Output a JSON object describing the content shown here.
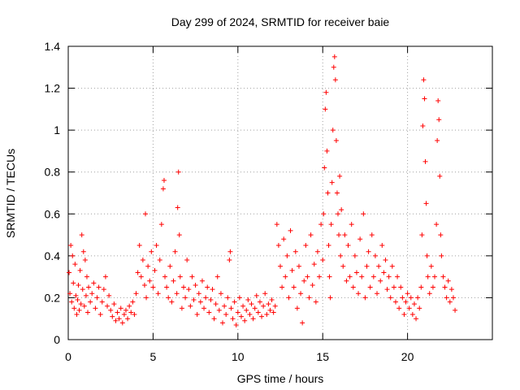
{
  "chart_data": {
    "type": "scatter",
    "title": "Day 299 of 2024, SRMTID for receiver baie",
    "xlabel": "GPS time / hours",
    "ylabel": "SRMTID / TECUs",
    "xlim": [
      0,
      25
    ],
    "ylim": [
      0,
      1.4
    ],
    "xticks": [
      0,
      5,
      10,
      15,
      20
    ],
    "xtick_labels": [
      "0",
      "5",
      "10",
      "15",
      "20"
    ],
    "yticks": [
      0,
      0.2,
      0.4,
      0.6,
      0.8,
      1.0,
      1.2,
      1.4
    ],
    "ytick_labels": [
      "0",
      "0.2",
      "0.4",
      "0.6",
      "0.8",
      "1",
      "1.2",
      "1.4"
    ],
    "grid": true,
    "marker": "+",
    "color": "#ff0000",
    "series": [
      {
        "name": "SRMTID",
        "points": [
          [
            0.05,
            0.32
          ],
          [
            0.1,
            0.22
          ],
          [
            0.15,
            0.45
          ],
          [
            0.2,
            0.18
          ],
          [
            0.25,
            0.4
          ],
          [
            0.3,
            0.27
          ],
          [
            0.35,
            0.15
          ],
          [
            0.4,
            0.36
          ],
          [
            0.45,
            0.21
          ],
          [
            0.5,
            0.12
          ],
          [
            0.55,
            0.19
          ],
          [
            0.6,
            0.26
          ],
          [
            0.65,
            0.14
          ],
          [
            0.7,
            0.33
          ],
          [
            0.75,
            0.17
          ],
          [
            0.8,
            0.5
          ],
          [
            0.85,
            0.24
          ],
          [
            0.9,
            0.42
          ],
          [
            0.95,
            0.16
          ],
          [
            1.0,
            0.38
          ],
          [
            1.05,
            0.21
          ],
          [
            1.1,
            0.3
          ],
          [
            1.15,
            0.13
          ],
          [
            1.2,
            0.25
          ],
          [
            1.3,
            0.18
          ],
          [
            1.4,
            0.22
          ],
          [
            1.5,
            0.27
          ],
          [
            1.6,
            0.15
          ],
          [
            1.7,
            0.2
          ],
          [
            1.8,
            0.25
          ],
          [
            1.9,
            0.12
          ],
          [
            2.0,
            0.18
          ],
          [
            2.1,
            0.24
          ],
          [
            2.2,
            0.3
          ],
          [
            2.3,
            0.16
          ],
          [
            2.4,
            0.21
          ],
          [
            2.5,
            0.14
          ],
          [
            2.6,
            0.11
          ],
          [
            2.7,
            0.17
          ],
          [
            2.8,
            0.09
          ],
          [
            2.9,
            0.13
          ],
          [
            3.0,
            0.1
          ],
          [
            3.1,
            0.15
          ],
          [
            3.2,
            0.08
          ],
          [
            3.3,
            0.12
          ],
          [
            3.4,
            0.14
          ],
          [
            3.5,
            0.1
          ],
          [
            3.6,
            0.16
          ],
          [
            3.7,
            0.13
          ],
          [
            3.8,
            0.18
          ],
          [
            3.9,
            0.12
          ],
          [
            4.0,
            0.22
          ],
          [
            4.1,
            0.32
          ],
          [
            4.2,
            0.45
          ],
          [
            4.3,
            0.3
          ],
          [
            4.4,
            0.38
          ],
          [
            4.5,
            0.26
          ],
          [
            4.55,
            0.6
          ],
          [
            4.6,
            0.2
          ],
          [
            4.7,
            0.35
          ],
          [
            4.8,
            0.28
          ],
          [
            4.9,
            0.42
          ],
          [
            5.0,
            0.25
          ],
          [
            5.1,
            0.33
          ],
          [
            5.2,
            0.45
          ],
          [
            5.3,
            0.22
          ],
          [
            5.4,
            0.38
          ],
          [
            5.5,
            0.55
          ],
          [
            5.6,
            0.72
          ],
          [
            5.65,
            0.76
          ],
          [
            5.7,
            0.3
          ],
          [
            5.8,
            0.25
          ],
          [
            5.9,
            0.2
          ],
          [
            6.0,
            0.35
          ],
          [
            6.1,
            0.18
          ],
          [
            6.2,
            0.28
          ],
          [
            6.3,
            0.42
          ],
          [
            6.4,
            0.22
          ],
          [
            6.45,
            0.63
          ],
          [
            6.5,
            0.8
          ],
          [
            6.55,
            0.5
          ],
          [
            6.6,
            0.3
          ],
          [
            6.7,
            0.15
          ],
          [
            6.8,
            0.25
          ],
          [
            6.9,
            0.2
          ],
          [
            7.0,
            0.38
          ],
          [
            7.1,
            0.24
          ],
          [
            7.2,
            0.16
          ],
          [
            7.3,
            0.3
          ],
          [
            7.4,
            0.19
          ],
          [
            7.5,
            0.26
          ],
          [
            7.6,
            0.12
          ],
          [
            7.7,
            0.22
          ],
          [
            7.8,
            0.18
          ],
          [
            7.9,
            0.28
          ],
          [
            8.0,
            0.15
          ],
          [
            8.1,
            0.2
          ],
          [
            8.2,
            0.25
          ],
          [
            8.3,
            0.13
          ],
          [
            8.4,
            0.19
          ],
          [
            8.5,
            0.24
          ],
          [
            8.6,
            0.1
          ],
          [
            8.7,
            0.17
          ],
          [
            8.8,
            0.3
          ],
          [
            8.9,
            0.14
          ],
          [
            9.0,
            0.22
          ],
          [
            9.1,
            0.08
          ],
          [
            9.2,
            0.16
          ],
          [
            9.3,
            0.12
          ],
          [
            9.4,
            0.2
          ],
          [
            9.5,
            0.38
          ],
          [
            9.55,
            0.42
          ],
          [
            9.6,
            0.15
          ],
          [
            9.7,
            0.1
          ],
          [
            9.8,
            0.18
          ],
          [
            9.9,
            0.07
          ],
          [
            10.0,
            0.13
          ],
          [
            10.1,
            0.2
          ],
          [
            10.2,
            0.11
          ],
          [
            10.3,
            0.16
          ],
          [
            10.4,
            0.09
          ],
          [
            10.5,
            0.14
          ],
          [
            10.6,
            0.19
          ],
          [
            10.7,
            0.12
          ],
          [
            10.8,
            0.17
          ],
          [
            10.9,
            0.1
          ],
          [
            11.0,
            0.15
          ],
          [
            11.1,
            0.21
          ],
          [
            11.2,
            0.13
          ],
          [
            11.3,
            0.18
          ],
          [
            11.4,
            0.11
          ],
          [
            11.5,
            0.16
          ],
          [
            11.6,
            0.22
          ],
          [
            11.7,
            0.12
          ],
          [
            11.8,
            0.17
          ],
          [
            11.9,
            0.14
          ],
          [
            12.0,
            0.19
          ],
          [
            12.1,
            0.13
          ],
          [
            12.2,
            0.16
          ],
          [
            12.3,
            0.55
          ],
          [
            12.4,
            0.45
          ],
          [
            12.5,
            0.35
          ],
          [
            12.6,
            0.25
          ],
          [
            12.7,
            0.48
          ],
          [
            12.8,
            0.3
          ],
          [
            12.9,
            0.4
          ],
          [
            13.0,
            0.2
          ],
          [
            13.1,
            0.52
          ],
          [
            13.2,
            0.33
          ],
          [
            13.3,
            0.25
          ],
          [
            13.4,
            0.42
          ],
          [
            13.5,
            0.15
          ],
          [
            13.6,
            0.35
          ],
          [
            13.7,
            0.22
          ],
          [
            13.8,
            0.08
          ],
          [
            13.9,
            0.28
          ],
          [
            14.0,
            0.45
          ],
          [
            14.1,
            0.3
          ],
          [
            14.2,
            0.2
          ],
          [
            14.3,
            0.5
          ],
          [
            14.4,
            0.26
          ],
          [
            14.5,
            0.36
          ],
          [
            14.6,
            0.18
          ],
          [
            14.7,
            0.42
          ],
          [
            14.8,
            0.3
          ],
          [
            14.9,
            0.55
          ],
          [
            15.0,
            0.38
          ],
          [
            15.05,
            0.6
          ],
          [
            15.1,
            0.82
          ],
          [
            15.15,
            1.1
          ],
          [
            15.2,
            1.18
          ],
          [
            15.25,
            0.9
          ],
          [
            15.3,
            0.7
          ],
          [
            15.35,
            0.45
          ],
          [
            15.4,
            0.3
          ],
          [
            15.45,
            0.2
          ],
          [
            15.5,
            0.55
          ],
          [
            15.55,
            0.75
          ],
          [
            15.6,
            1.0
          ],
          [
            15.65,
            1.3
          ],
          [
            15.7,
            1.35
          ],
          [
            15.75,
            1.24
          ],
          [
            15.8,
            0.95
          ],
          [
            15.85,
            0.7
          ],
          [
            15.9,
            0.6
          ],
          [
            15.95,
            0.5
          ],
          [
            16.0,
            0.78
          ],
          [
            16.05,
            0.4
          ],
          [
            16.1,
            0.62
          ],
          [
            16.2,
            0.35
          ],
          [
            16.3,
            0.5
          ],
          [
            16.4,
            0.28
          ],
          [
            16.5,
            0.45
          ],
          [
            16.6,
            0.3
          ],
          [
            16.7,
            0.55
          ],
          [
            16.8,
            0.25
          ],
          [
            16.9,
            0.4
          ],
          [
            17.0,
            0.32
          ],
          [
            17.1,
            0.22
          ],
          [
            17.2,
            0.48
          ],
          [
            17.3,
            0.3
          ],
          [
            17.4,
            0.6
          ],
          [
            17.5,
            0.2
          ],
          [
            17.6,
            0.35
          ],
          [
            17.7,
            0.42
          ],
          [
            17.8,
            0.25
          ],
          [
            17.9,
            0.5
          ],
          [
            18.0,
            0.3
          ],
          [
            18.1,
            0.4
          ],
          [
            18.2,
            0.22
          ],
          [
            18.3,
            0.35
          ],
          [
            18.4,
            0.28
          ],
          [
            18.5,
            0.45
          ],
          [
            18.6,
            0.32
          ],
          [
            18.7,
            0.38
          ],
          [
            18.8,
            0.24
          ],
          [
            18.9,
            0.3
          ],
          [
            19.0,
            0.2
          ],
          [
            19.1,
            0.35
          ],
          [
            19.2,
            0.25
          ],
          [
            19.3,
            0.18
          ],
          [
            19.4,
            0.3
          ],
          [
            19.5,
            0.15
          ],
          [
            19.6,
            0.25
          ],
          [
            19.7,
            0.2
          ],
          [
            19.8,
            0.12
          ],
          [
            19.9,
            0.18
          ],
          [
            20.0,
            0.22
          ],
          [
            20.1,
            0.15
          ],
          [
            20.2,
            0.2
          ],
          [
            20.3,
            0.12
          ],
          [
            20.4,
            0.17
          ],
          [
            20.5,
            0.1
          ],
          [
            20.6,
            0.2
          ],
          [
            20.7,
            0.15
          ],
          [
            20.8,
            0.25
          ],
          [
            20.85,
            0.5
          ],
          [
            20.9,
            1.02
          ],
          [
            20.95,
            1.24
          ],
          [
            21.0,
            1.15
          ],
          [
            21.05,
            0.85
          ],
          [
            21.1,
            0.65
          ],
          [
            21.15,
            0.4
          ],
          [
            21.2,
            0.3
          ],
          [
            21.3,
            0.22
          ],
          [
            21.4,
            0.35
          ],
          [
            21.5,
            0.25
          ],
          [
            21.6,
            0.3
          ],
          [
            21.7,
            0.55
          ],
          [
            21.75,
            0.95
          ],
          [
            21.8,
            1.14
          ],
          [
            21.85,
            1.05
          ],
          [
            21.9,
            0.78
          ],
          [
            21.95,
            0.5
          ],
          [
            22.0,
            0.4
          ],
          [
            22.1,
            0.3
          ],
          [
            22.2,
            0.25
          ],
          [
            22.3,
            0.2
          ],
          [
            22.4,
            0.28
          ],
          [
            22.5,
            0.18
          ],
          [
            22.6,
            0.24
          ],
          [
            22.7,
            0.2
          ],
          [
            22.8,
            0.14
          ]
        ]
      }
    ]
  }
}
